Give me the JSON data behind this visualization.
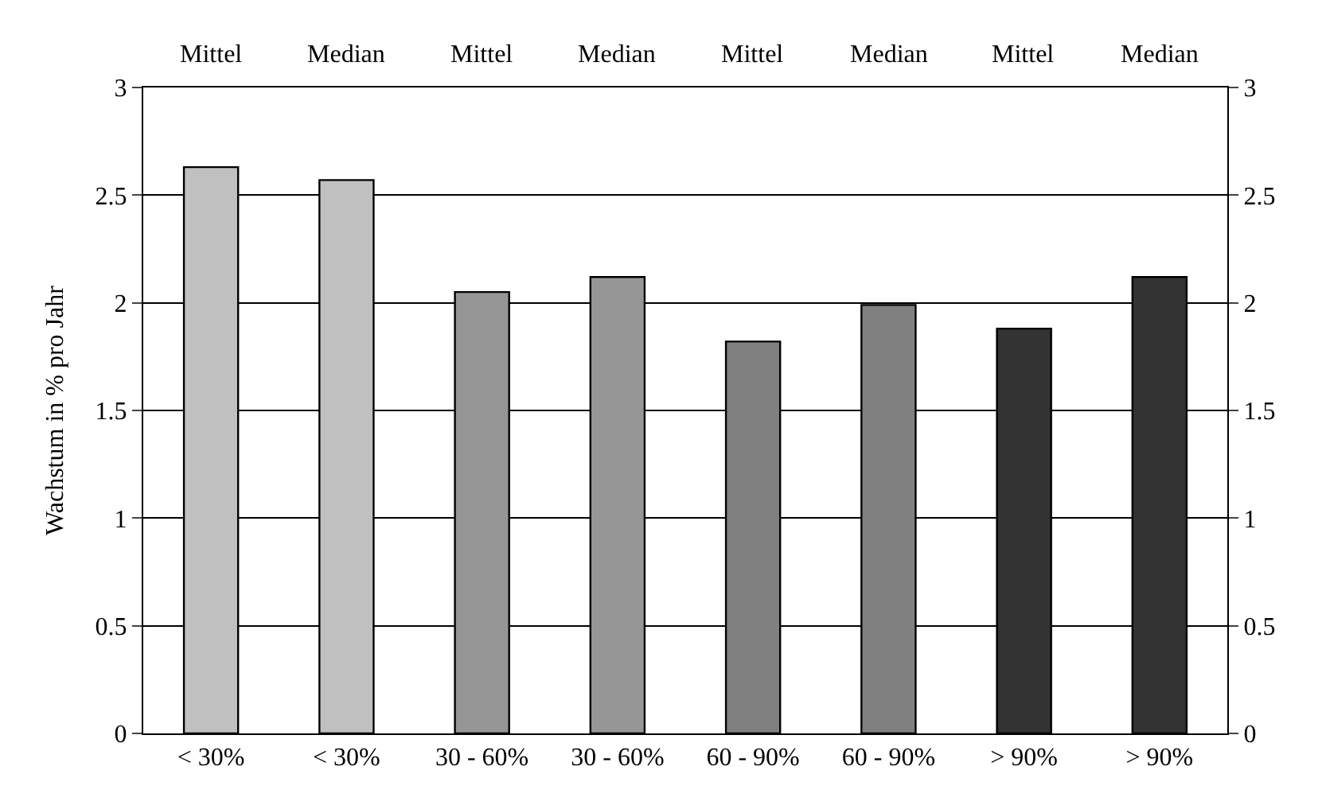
{
  "chart_data": {
    "type": "bar",
    "ylabel": "Wachstum in % pro Jahr",
    "categories": [
      "< 30%",
      "< 30%",
      "30 - 60%",
      "30 - 60%",
      "60 - 90%",
      "60 - 90%",
      "> 90%",
      "> 90%"
    ],
    "values": [
      2.63,
      2.57,
      2.05,
      2.12,
      1.82,
      1.99,
      1.88,
      2.12
    ],
    "colors": [
      "#c0c0c0",
      "#c0c0c0",
      "#969696",
      "#969696",
      "#808080",
      "#808080",
      "#333333",
      "#333333"
    ],
    "ylim": [
      0,
      3
    ],
    "yticks": [
      0,
      0.5,
      1,
      1.5,
      2,
      2.5,
      3
    ],
    "y2lim": [
      0,
      3
    ],
    "y2ticks": [
      0,
      0.5,
      1,
      1.5,
      2,
      2.5,
      3
    ],
    "annotations": [
      "Mittel",
      "Median",
      "Mittel",
      "Median",
      "Mittel",
      "Median",
      "Mittel",
      "Median"
    ],
    "grid": "y"
  }
}
